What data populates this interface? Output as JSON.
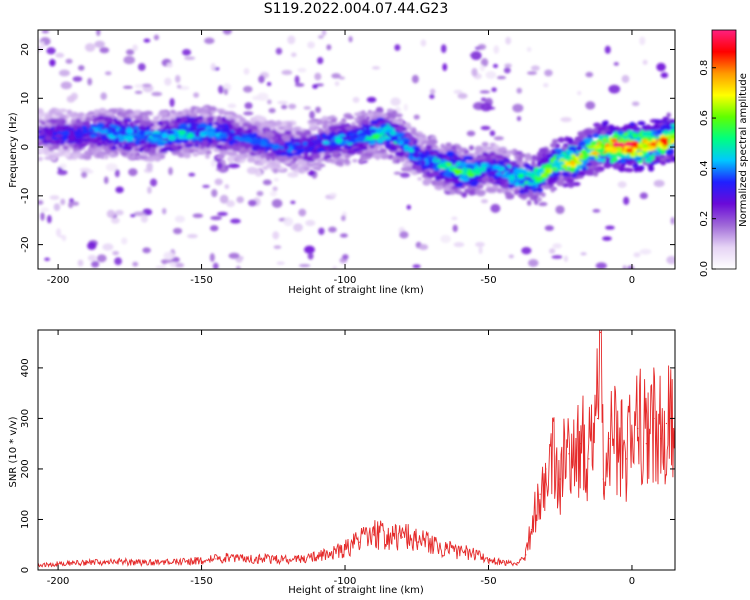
{
  "title": "S119.2022.004.07.44.G23",
  "colors": {
    "axis": "#000000",
    "snr_line": "#e52a2a",
    "colormap": [
      "#ffffff",
      "#e6d4f5",
      "#a06ad8",
      "#6a0ad8",
      "#2020ff",
      "#00c8ff",
      "#00ff80",
      "#60ff00",
      "#ffff00",
      "#ff9900",
      "#ff0000",
      "#ff2080"
    ]
  },
  "chart_data": [
    {
      "type": "heatmap",
      "title": "S119.2022.004.07.44.G23",
      "xlabel": "Height of straight line (km)",
      "ylabel": "Frequency (Hz)",
      "xlim": [
        -207,
        15
      ],
      "ylim": [
        -25,
        24
      ],
      "xticks": [
        -200,
        -150,
        -100,
        -50,
        0
      ],
      "xtick_labels": [
        "-200",
        "-150",
        "-100",
        "-50",
        "0"
      ],
      "yticks": [
        -20,
        -10,
        0,
        10,
        20
      ],
      "ytick_labels": [
        "-20",
        "-10",
        "0",
        "10",
        "20"
      ],
      "grid": false,
      "colorbar": {
        "label": "Normalized spectral amplitude",
        "range": [
          0,
          0.95
        ],
        "ticks": [
          0.0,
          0.2,
          0.4,
          0.6,
          0.8
        ],
        "tick_labels": [
          "0.0",
          "0.2",
          "0.4",
          "0.6",
          "0.8"
        ]
      },
      "ridge": {
        "x": [
          -205,
          -195,
          -185,
          -175,
          -165,
          -155,
          -145,
          -135,
          -125,
          -115,
          -105,
          -95,
          -85,
          -80,
          -75,
          -70,
          -65,
          -60,
          -55,
          -50,
          -45,
          -40,
          -35,
          -30,
          -25,
          -20,
          -15,
          -10,
          -5,
          0,
          5,
          10,
          14
        ],
        "y": [
          2.5,
          2.5,
          3,
          2.5,
          2,
          3,
          3,
          2,
          0,
          0,
          1,
          2,
          3,
          1,
          -2,
          -3,
          -4,
          -5,
          -5,
          -4,
          -5,
          -6,
          -7,
          -5,
          -3,
          -3,
          -1,
          0,
          0,
          0,
          0,
          1,
          2
        ],
        "amplitude": [
          0.3,
          0.35,
          0.4,
          0.45,
          0.4,
          0.45,
          0.4,
          0.35,
          0.35,
          0.35,
          0.4,
          0.45,
          0.5,
          0.45,
          0.4,
          0.45,
          0.5,
          0.55,
          0.5,
          0.35,
          0.45,
          0.5,
          0.5,
          0.6,
          0.6,
          0.75,
          0.6,
          0.75,
          0.9,
          0.85,
          0.8,
          0.8,
          0.7
        ]
      },
      "background_noise_amplitude": 0.1
    },
    {
      "type": "line",
      "xlabel": "Height of straight line (km)",
      "ylabel": "SNR (10 * v/v)",
      "xlim": [
        -207,
        15
      ],
      "ylim": [
        0,
        475
      ],
      "xticks": [
        -200,
        -150,
        -100,
        -50,
        0
      ],
      "xtick_labels": [
        "-200",
        "-150",
        "-100",
        "-50",
        "0"
      ],
      "yticks": [
        0,
        100,
        200,
        300,
        400
      ],
      "ytick_labels": [
        "0",
        "100",
        "200",
        "300",
        "400"
      ],
      "grid": false,
      "series": [
        {
          "x": [
            -207,
            -200,
            -190,
            -180,
            -170,
            -160,
            -150,
            -145,
            -140,
            -135,
            -130,
            -125,
            -120,
            -115,
            -110,
            -105,
            -100,
            -95,
            -90,
            -85,
            -80,
            -75,
            -70,
            -65,
            -60,
            -55,
            -50,
            -45,
            -40,
            -37,
            -35,
            -32,
            -30,
            -28,
            -25,
            -22,
            -20,
            -18,
            -15,
            -12,
            -11,
            -10,
            -8,
            -5,
            -2,
            0,
            2,
            5,
            8,
            10,
            12,
            14,
            15
          ],
          "y": [
            10,
            12,
            14,
            16,
            14,
            15,
            18,
            22,
            25,
            20,
            22,
            20,
            20,
            22,
            25,
            30,
            40,
            55,
            70,
            60,
            65,
            55,
            50,
            40,
            35,
            30,
            20,
            15,
            10,
            30,
            80,
            150,
            200,
            220,
            180,
            230,
            200,
            250,
            220,
            300,
            470,
            180,
            260,
            240,
            220,
            260,
            280,
            250,
            300,
            260,
            290,
            270,
            250
          ]
        }
      ]
    }
  ]
}
